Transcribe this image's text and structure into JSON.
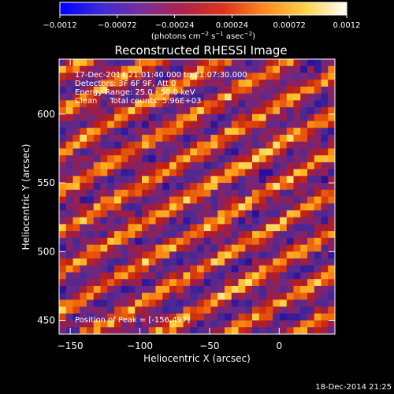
{
  "chart_data": {
    "type": "heatmap",
    "title": "Reconstructed RHESSI Image",
    "xlabel": "Heliocentric X (arcsec)",
    "ylabel": "Heliocentric Y (arcsec)",
    "xlim": [
      -158,
      40
    ],
    "ylim": [
      440,
      640
    ],
    "xticks": [
      -150,
      -100,
      -50,
      0
    ],
    "xtick_labels": [
      "−150",
      "−100",
      "−50",
      "0"
    ],
    "yticks": [
      450,
      500,
      550,
      600
    ],
    "ytick_labels": [
      "450",
      "500",
      "550",
      "600"
    ],
    "colorbar": {
      "range": [
        -0.0012,
        0.0012
      ],
      "ticks": [
        -0.0012,
        -0.00072,
        -0.00024,
        0.00024,
        0.00072,
        0.0012
      ],
      "tick_labels": [
        "−0.0012",
        "−0.00072",
        "−0.00024",
        "0.00024",
        "0.00072",
        "0.0012"
      ],
      "colors": [
        "#0000ff",
        "#3a2bd6",
        "#7a2e9a",
        "#b0224a",
        "#e0321a",
        "#ff8a1e",
        "#ffd24a",
        "#ffffff"
      ]
    },
    "annotations": [
      "17-Dec-2014 21:01:40.000 to 21:07:30.000",
      "Detectors: 3F 6F 9F, Att 0",
      "Energy Range: 25.0 - 50.0 keV",
      "Clean     Total counts: 5.96E+03"
    ],
    "peak_label": "Position of Peak = [-156,497]",
    "peak": [
      -156,
      497
    ]
  },
  "footer": {
    "timestamp": "18-Dec-2014 21:25"
  }
}
